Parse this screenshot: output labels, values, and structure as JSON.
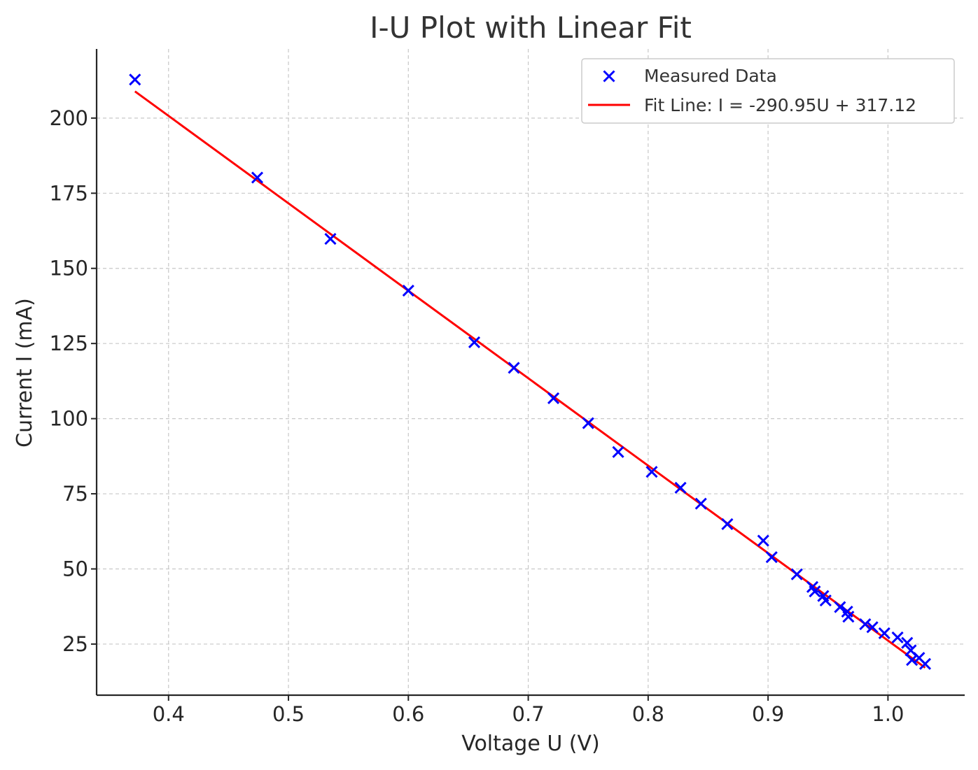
{
  "chart_data": {
    "type": "scatter",
    "title": "I-U Plot with Linear Fit",
    "xlabel": "Voltage U (V)",
    "ylabel": "Current I (mA)",
    "xlim": [
      0.34,
      1.064
    ],
    "ylim": [
      8,
      223
    ],
    "xticks": [
      0.4,
      0.5,
      0.6,
      0.7,
      0.8,
      0.9,
      1.0
    ],
    "xtick_labels": [
      "0.4",
      "0.5",
      "0.6",
      "0.7",
      "0.8",
      "0.9",
      "1.0"
    ],
    "yticks": [
      25,
      50,
      75,
      100,
      125,
      150,
      175,
      200
    ],
    "ytick_labels": [
      "25",
      "50",
      "75",
      "100",
      "125",
      "150",
      "175",
      "200"
    ],
    "grid": true,
    "legend_position": "top-right",
    "series": [
      {
        "name": "Measured Data",
        "kind": "scatter",
        "marker": "x",
        "color": "#0000ff",
        "points": [
          [
            0.372,
            212.8
          ],
          [
            0.474,
            180.2
          ],
          [
            0.535,
            159.8
          ],
          [
            0.6,
            142.6
          ],
          [
            0.655,
            125.4
          ],
          [
            0.688,
            116.9
          ],
          [
            0.721,
            106.8
          ],
          [
            0.75,
            98.5
          ],
          [
            0.775,
            88.9
          ],
          [
            0.803,
            82.3
          ],
          [
            0.827,
            77.0
          ],
          [
            0.844,
            71.7
          ],
          [
            0.866,
            64.9
          ],
          [
            0.896,
            59.4
          ],
          [
            0.903,
            53.9
          ],
          [
            0.924,
            48.2
          ],
          [
            0.937,
            44.0
          ],
          [
            0.939,
            42.5
          ],
          [
            0.946,
            41.0
          ],
          [
            0.948,
            39.5
          ],
          [
            0.96,
            37.3
          ],
          [
            0.966,
            35.8
          ],
          [
            0.967,
            34.1
          ],
          [
            0.981,
            31.6
          ],
          [
            0.987,
            30.6
          ],
          [
            0.997,
            28.6
          ],
          [
            1.008,
            27.2
          ],
          [
            1.016,
            25.4
          ],
          [
            1.019,
            22.9
          ],
          [
            1.02,
            19.7
          ],
          [
            1.026,
            20.4
          ],
          [
            1.031,
            18.4
          ]
        ]
      },
      {
        "name": "Fit Line: I = -290.95U + 317.12",
        "kind": "line",
        "color": "#ff0000",
        "x": [
          0.372,
          1.031
        ],
        "slope": -290.95,
        "intercept": 317.12
      }
    ]
  }
}
